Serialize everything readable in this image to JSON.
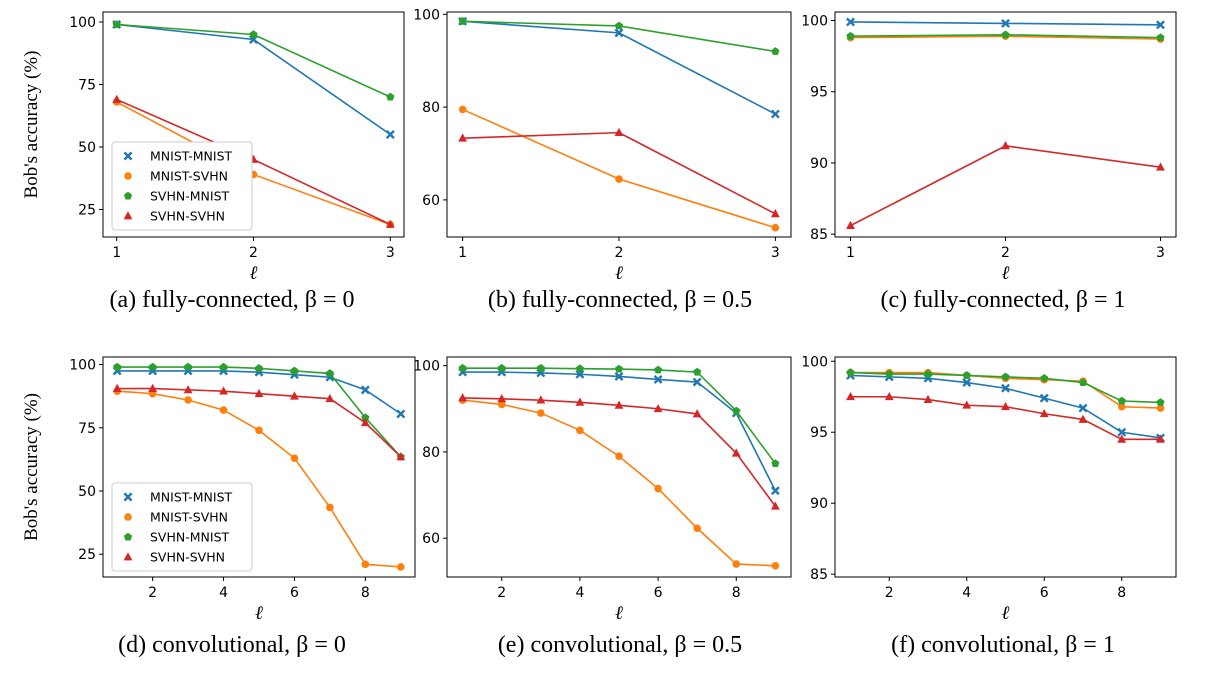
{
  "colors": {
    "MNIST-MNIST": "#1f77b4",
    "MNIST-SVHN": "#ff7f0e",
    "SVHN-MNIST": "#2ca02c",
    "SVHN-SVHN": "#d62728"
  },
  "markers": {
    "MNIST-MNIST": "x",
    "MNIST-SVHN": "circle",
    "SVHN-MNIST": "pentagon",
    "SVHN-SVHN": "triangle"
  },
  "chart_data": [
    {
      "id": "a",
      "type": "line",
      "title": "(a)  fully-connected, β = 0",
      "xlabel": "ℓ",
      "ylabel": "Bob's accuracy (%)",
      "x": [
        1,
        2,
        3
      ],
      "xlim": [
        0.9,
        3.1
      ],
      "ylim": [
        14,
        104
      ],
      "xticks": [
        "1",
        "2",
        "3"
      ],
      "yticks": [
        "25",
        "50",
        "75",
        "100"
      ],
      "legend": true,
      "series": [
        {
          "name": "MNIST-MNIST",
          "values": [
            99,
            93,
            55
          ]
        },
        {
          "name": "MNIST-SVHN",
          "values": [
            68,
            39,
            19
          ]
        },
        {
          "name": "SVHN-MNIST",
          "values": [
            99,
            95,
            70
          ]
        },
        {
          "name": "SVHN-SVHN",
          "values": [
            69,
            45,
            19
          ]
        }
      ]
    },
    {
      "id": "b",
      "type": "line",
      "title": "(b)  fully-connected, β = 0.5",
      "xlabel": "ℓ",
      "ylabel": "",
      "x": [
        1,
        2,
        3
      ],
      "xlim": [
        0.9,
        3.1
      ],
      "ylim": [
        52,
        100.5
      ],
      "xticks": [
        "1",
        "2",
        "3"
      ],
      "yticks": [
        "60",
        "80",
        "100"
      ],
      "legend": false,
      "series": [
        {
          "name": "MNIST-MNIST",
          "values": [
            98.5,
            96,
            78.5
          ]
        },
        {
          "name": "MNIST-SVHN",
          "values": [
            79.5,
            64.5,
            54
          ]
        },
        {
          "name": "SVHN-MNIST",
          "values": [
            98.5,
            97.5,
            92
          ]
        },
        {
          "name": "SVHN-SVHN",
          "values": [
            73.3,
            74.5,
            57
          ]
        }
      ]
    },
    {
      "id": "c",
      "type": "line",
      "title": "(c)  fully-connected, β = 1",
      "xlabel": "ℓ",
      "ylabel": "",
      "x": [
        1,
        2,
        3
      ],
      "xlim": [
        0.9,
        3.1
      ],
      "ylim": [
        84.8,
        100.6
      ],
      "xticks": [
        "1",
        "2",
        "3"
      ],
      "yticks": [
        "85",
        "90",
        "95",
        "100"
      ],
      "legend": false,
      "series": [
        {
          "name": "MNIST-MNIST",
          "values": [
            99.9,
            99.8,
            99.7
          ]
        },
        {
          "name": "MNIST-SVHN",
          "values": [
            98.8,
            98.9,
            98.7
          ]
        },
        {
          "name": "SVHN-MNIST",
          "values": [
            98.9,
            99.0,
            98.8
          ]
        },
        {
          "name": "SVHN-SVHN",
          "values": [
            85.6,
            91.2,
            89.7
          ]
        }
      ]
    },
    {
      "id": "d",
      "type": "line",
      "title": "(d)  convolutional, β = 0",
      "xlabel": "ℓ",
      "ylabel": "Bob's accuracy (%)",
      "x": [
        1,
        2,
        3,
        4,
        5,
        6,
        7,
        8,
        9
      ],
      "xlim": [
        0.6,
        9.4
      ],
      "ylim": [
        16,
        103
      ],
      "xticks": [
        "2",
        "4",
        "6",
        "8"
      ],
      "xtickvals": [
        2,
        4,
        6,
        8
      ],
      "yticks": [
        "25",
        "50",
        "75",
        "100"
      ],
      "legend": true,
      "series": [
        {
          "name": "MNIST-MNIST",
          "values": [
            97.5,
            97.5,
            97.5,
            97.5,
            97,
            96,
            95,
            90,
            80.5
          ]
        },
        {
          "name": "MNIST-SVHN",
          "values": [
            89.5,
            88.5,
            86,
            82,
            74,
            63,
            43.5,
            21,
            20
          ]
        },
        {
          "name": "SVHN-MNIST",
          "values": [
            99,
            99,
            99,
            99,
            98.5,
            97.5,
            96.5,
            79,
            63.5
          ]
        },
        {
          "name": "SVHN-SVHN",
          "values": [
            90.5,
            90.5,
            90,
            89.5,
            88.5,
            87.5,
            86.5,
            77,
            63.5
          ]
        }
      ]
    },
    {
      "id": "e",
      "type": "line",
      "title": "(e)  convolutional, β = 0.5",
      "xlabel": "ℓ",
      "ylabel": "",
      "x": [
        1,
        2,
        3,
        4,
        5,
        6,
        7,
        8,
        9
      ],
      "xlim": [
        0.6,
        9.4
      ],
      "ylim": [
        51,
        102
      ],
      "xticks": [
        "2",
        "4",
        "6",
        "8"
      ],
      "xtickvals": [
        2,
        4,
        6,
        8
      ],
      "yticks": [
        "60",
        "80",
        "100"
      ],
      "legend": false,
      "series": [
        {
          "name": "MNIST-MNIST",
          "values": [
            98.5,
            98.5,
            98.3,
            98,
            97.5,
            96.8,
            96.2,
            89,
            71
          ]
        },
        {
          "name": "MNIST-SVHN",
          "values": [
            92,
            91,
            89,
            85,
            79,
            71.5,
            62.3,
            54,
            53.6
          ]
        },
        {
          "name": "SVHN-MNIST",
          "values": [
            99.4,
            99.4,
            99.4,
            99.3,
            99.2,
            99.0,
            98.5,
            89.5,
            77.3
          ]
        },
        {
          "name": "SVHN-SVHN",
          "values": [
            92.5,
            92.3,
            92,
            91.5,
            90.8,
            90,
            88.8,
            79.7,
            67.4
          ]
        }
      ]
    },
    {
      "id": "f",
      "type": "line",
      "title": "(f)  convolutional, β = 1",
      "xlabel": "ℓ",
      "ylabel": "",
      "x": [
        1,
        2,
        3,
        4,
        5,
        6,
        7,
        8,
        9
      ],
      "xlim": [
        0.6,
        9.4
      ],
      "ylim": [
        84.8,
        100.3
      ],
      "xticks": [
        "2",
        "4",
        "6",
        "8"
      ],
      "xtickvals": [
        2,
        4,
        6,
        8
      ],
      "yticks": [
        "85",
        "90",
        "95",
        "100"
      ],
      "legend": false,
      "series": [
        {
          "name": "MNIST-MNIST",
          "values": [
            99.0,
            98.9,
            98.8,
            98.5,
            98.1,
            97.4,
            96.7,
            95.0,
            94.6
          ]
        },
        {
          "name": "MNIST-SVHN",
          "values": [
            99.2,
            99.2,
            99.2,
            99.0,
            98.8,
            98.7,
            98.6,
            96.8,
            96.7
          ]
        },
        {
          "name": "SVHN-MNIST",
          "values": [
            99.2,
            99.1,
            99.1,
            99.0,
            98.9,
            98.8,
            98.5,
            97.2,
            97.1
          ]
        },
        {
          "name": "SVHN-SVHN",
          "values": [
            97.5,
            97.5,
            97.3,
            96.9,
            96.8,
            96.3,
            95.9,
            94.5,
            94.5
          ]
        }
      ]
    }
  ]
}
